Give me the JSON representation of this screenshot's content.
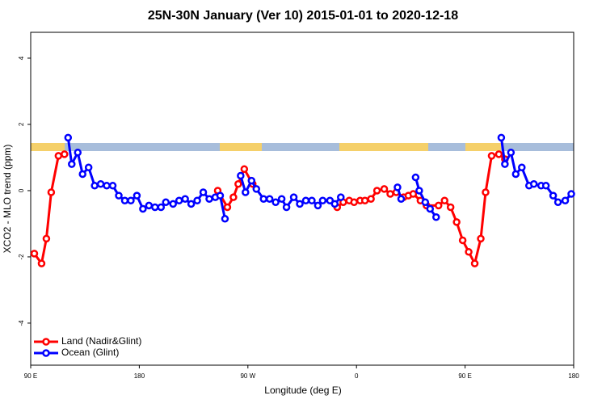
{
  "chart_data": {
    "type": "line",
    "title": "25N-30N January (Ver 10)   2015-01-01 to 2020-12-18",
    "x_label": "Longitude (deg E)",
    "y_label": "XCO2 - MLO trend (ppm)",
    "xlim": [
      90,
      540
    ],
    "ylim": [
      -5.27,
      4.78
    ],
    "xticks": [
      {
        "value": 90,
        "label": "90 E"
      },
      180,
      {
        "value": 270,
        "label": "90 W"
      },
      {
        "value": 360,
        "label": "0"
      },
      {
        "value": 450,
        "label": "90 E"
      },
      {
        "value": 540,
        "label": "180"
      }
    ],
    "yticks": [
      -4,
      -2,
      0,
      2,
      4
    ],
    "legend": "bottom-left",
    "series": [
      {
        "name": "Land (Nadir&Glint)",
        "color": "#ff0000",
        "x": [
          93,
          99,
          103,
          107,
          113,
          118,
          null,
          245,
          253,
          258,
          262,
          267,
          274,
          null,
          344,
          349,
          354,
          358,
          363,
          367,
          372,
          377,
          383,
          388,
          393,
          399,
          403,
          407,
          413,
          418,
          428,
          433,
          438,
          443,
          448,
          453,
          458,
          463,
          467,
          472,
          478,
          483
        ],
        "values": [
          -1.9,
          -2.2,
          -1.45,
          -0.05,
          1.05,
          1.1,
          null,
          0,
          -0.5,
          -0.2,
          0.2,
          0.65,
          0.2,
          null,
          -0.5,
          -0.35,
          -0.3,
          -0.35,
          -0.3,
          -0.3,
          -0.25,
          0,
          0.05,
          -0.1,
          -0.05,
          -0.2,
          -0.15,
          -0.1,
          -0.3,
          -0.45,
          -0.45,
          -0.3,
          -0.5,
          -0.95,
          -1.5,
          -1.85,
          -2.2,
          -1.45,
          -0.05,
          1.05,
          1.1,
          0.95
        ]
      },
      {
        "name": "Ocean (Glint)",
        "color": "#0000ff",
        "x": [
          121,
          124,
          129,
          133,
          138,
          143,
          148,
          153,
          158,
          163,
          168,
          173,
          178,
          183,
          188,
          193,
          198,
          202,
          208,
          213,
          218,
          223,
          228,
          233,
          238,
          243,
          247,
          251,
          null,
          264,
          268,
          273,
          277,
          283,
          288,
          293,
          298,
          302,
          308,
          313,
          318,
          323,
          328,
          332,
          338,
          342,
          347,
          null,
          394,
          397,
          null,
          409,
          412,
          417,
          421,
          426,
          null,
          480,
          483,
          488,
          492,
          497,
          503,
          507,
          513,
          517,
          523,
          527,
          533,
          538
        ],
        "values": [
          1.6,
          0.8,
          1.15,
          0.5,
          0.7,
          0.15,
          0.2,
          0.15,
          0.15,
          -0.15,
          -0.3,
          -0.3,
          -0.15,
          -0.55,
          -0.45,
          -0.5,
          -0.5,
          -0.35,
          -0.4,
          -0.3,
          -0.25,
          -0.4,
          -0.3,
          -0.05,
          -0.25,
          -0.2,
          -0.15,
          -0.85,
          null,
          0.45,
          -0.05,
          0.3,
          0.05,
          -0.25,
          -0.25,
          -0.35,
          -0.25,
          -0.5,
          -0.2,
          -0.4,
          -0.3,
          -0.3,
          -0.45,
          -0.3,
          -0.3,
          -0.4,
          -0.2,
          null,
          0.1,
          -0.25,
          null,
          0.4,
          0,
          -0.35,
          -0.55,
          -0.8,
          null,
          1.6,
          0.8,
          1.15,
          0.5,
          0.7,
          0.15,
          0.2,
          0.15,
          0.15,
          -0.15,
          -0.35,
          -0.3,
          -0.1
        ]
      }
    ]
  }
}
